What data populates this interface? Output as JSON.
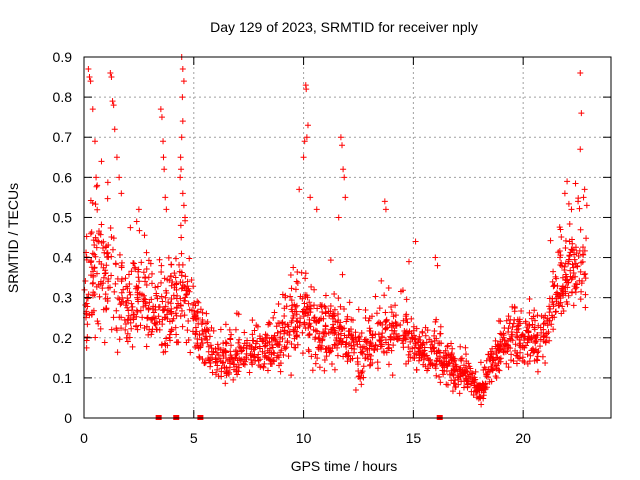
{
  "chart_data": {
    "type": "scatter",
    "title": "Day 129 of 2023, SRMTID for receiver nply",
    "xlabel": "GPS time / hours",
    "ylabel": "SRMTID / TECUs",
    "xlim": [
      0,
      24
    ],
    "ylim": [
      0,
      0.9
    ],
    "xticks": [
      0,
      5,
      10,
      15,
      20
    ],
    "xtick_labels": [
      "0",
      "5",
      "10",
      "15",
      "20"
    ],
    "yticks": [
      0,
      0.1,
      0.2,
      0.3,
      0.4,
      0.5,
      0.6,
      0.7,
      0.8,
      0.9
    ],
    "ytick_labels": [
      "0",
      "0.1",
      "0.2",
      "0.3",
      "0.4",
      "0.5",
      "0.6",
      "0.7",
      "0.8",
      "0.9"
    ],
    "grid": true,
    "marker": "+",
    "color": "#ff0000",
    "envelope": [
      [
        0.0,
        0.28,
        0.12
      ],
      [
        0.3,
        0.35,
        0.12
      ],
      [
        0.6,
        0.38,
        0.14
      ],
      [
        1.0,
        0.36,
        0.13
      ],
      [
        1.5,
        0.32,
        0.12
      ],
      [
        2.0,
        0.27,
        0.1
      ],
      [
        2.5,
        0.3,
        0.1
      ],
      [
        3.0,
        0.28,
        0.1
      ],
      [
        3.5,
        0.25,
        0.09
      ],
      [
        4.0,
        0.28,
        0.1
      ],
      [
        4.5,
        0.3,
        0.11
      ],
      [
        5.0,
        0.24,
        0.08
      ],
      [
        5.5,
        0.2,
        0.06
      ],
      [
        6.0,
        0.15,
        0.05
      ],
      [
        6.5,
        0.14,
        0.05
      ],
      [
        7.0,
        0.15,
        0.05
      ],
      [
        7.5,
        0.16,
        0.05
      ],
      [
        8.0,
        0.17,
        0.05
      ],
      [
        8.5,
        0.18,
        0.06
      ],
      [
        9.0,
        0.2,
        0.06
      ],
      [
        9.5,
        0.24,
        0.08
      ],
      [
        10.0,
        0.26,
        0.09
      ],
      [
        10.5,
        0.22,
        0.08
      ],
      [
        11.0,
        0.2,
        0.08
      ],
      [
        11.5,
        0.22,
        0.08
      ],
      [
        12.0,
        0.2,
        0.08
      ],
      [
        12.5,
        0.16,
        0.06
      ],
      [
        13.0,
        0.17,
        0.06
      ],
      [
        13.5,
        0.2,
        0.07
      ],
      [
        14.0,
        0.22,
        0.07
      ],
      [
        14.5,
        0.2,
        0.07
      ],
      [
        15.0,
        0.19,
        0.07
      ],
      [
        15.5,
        0.17,
        0.06
      ],
      [
        16.0,
        0.16,
        0.06
      ],
      [
        16.5,
        0.14,
        0.05
      ],
      [
        17.0,
        0.12,
        0.05
      ],
      [
        17.5,
        0.1,
        0.04
      ],
      [
        18.0,
        0.07,
        0.03
      ],
      [
        18.5,
        0.12,
        0.05
      ],
      [
        19.0,
        0.17,
        0.06
      ],
      [
        19.5,
        0.2,
        0.06
      ],
      [
        20.0,
        0.2,
        0.06
      ],
      [
        20.5,
        0.18,
        0.06
      ],
      [
        21.0,
        0.2,
        0.06
      ],
      [
        21.5,
        0.3,
        0.09
      ],
      [
        22.0,
        0.36,
        0.1
      ],
      [
        22.5,
        0.38,
        0.1
      ],
      [
        22.8,
        0.4,
        0.1
      ]
    ],
    "spikes": [
      [
        0.2,
        0.87
      ],
      [
        0.25,
        0.85
      ],
      [
        0.3,
        0.84
      ],
      [
        0.4,
        0.77
      ],
      [
        0.5,
        0.69
      ],
      [
        0.55,
        0.6
      ],
      [
        0.6,
        0.58
      ],
      [
        1.2,
        0.86
      ],
      [
        1.25,
        0.85
      ],
      [
        1.3,
        0.79
      ],
      [
        1.35,
        0.78
      ],
      [
        1.4,
        0.72
      ],
      [
        1.5,
        0.65
      ],
      [
        1.6,
        0.6
      ],
      [
        1.7,
        0.56
      ],
      [
        2.5,
        0.52
      ],
      [
        2.4,
        0.49
      ],
      [
        3.5,
        0.77
      ],
      [
        3.55,
        0.75
      ],
      [
        3.6,
        0.69
      ],
      [
        3.62,
        0.65
      ],
      [
        3.65,
        0.62
      ],
      [
        3.7,
        0.55
      ],
      [
        3.75,
        0.52
      ],
      [
        4.45,
        0.9
      ],
      [
        4.5,
        0.87
      ],
      [
        4.55,
        0.84
      ],
      [
        4.48,
        0.8
      ],
      [
        4.5,
        0.74
      ],
      [
        4.45,
        0.7
      ],
      [
        4.4,
        0.65
      ],
      [
        4.42,
        0.62
      ],
      [
        4.38,
        0.6
      ],
      [
        4.5,
        0.56
      ],
      [
        4.55,
        0.53
      ],
      [
        4.6,
        0.5
      ],
      [
        10.1,
        0.83
      ],
      [
        10.12,
        0.82
      ],
      [
        10.2,
        0.73
      ],
      [
        10.15,
        0.7
      ],
      [
        10.05,
        0.69
      ],
      [
        10.0,
        0.65
      ],
      [
        9.8,
        0.57
      ],
      [
        10.3,
        0.55
      ],
      [
        10.6,
        0.52
      ],
      [
        11.7,
        0.7
      ],
      [
        11.75,
        0.68
      ],
      [
        11.8,
        0.62
      ],
      [
        11.85,
        0.6
      ],
      [
        11.9,
        0.55
      ],
      [
        11.6,
        0.5
      ],
      [
        13.7,
        0.54
      ],
      [
        13.75,
        0.52
      ],
      [
        15.1,
        0.44
      ],
      [
        16.0,
        0.4
      ],
      [
        16.1,
        0.38
      ],
      [
        14.8,
        0.39
      ],
      [
        22.6,
        0.86
      ],
      [
        22.65,
        0.76
      ],
      [
        22.6,
        0.67
      ],
      [
        22.8,
        0.57
      ],
      [
        22.75,
        0.55
      ],
      [
        22.5,
        0.54
      ],
      [
        22.0,
        0.59
      ],
      [
        21.9,
        0.56
      ],
      [
        22.2,
        0.52
      ],
      [
        22.9,
        0.53
      ],
      [
        21.7,
        0.47
      ]
    ],
    "axis_markers_x": [
      3.4,
      4.2,
      16.2,
      5.3
    ]
  }
}
